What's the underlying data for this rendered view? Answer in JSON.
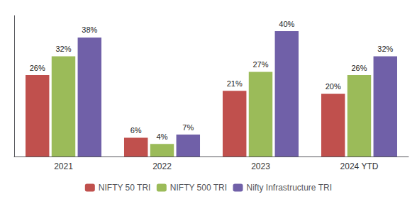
{
  "chart_data": {
    "type": "bar",
    "categories": [
      "2021",
      "2022",
      "2023",
      "2024 YTD"
    ],
    "series": [
      {
        "name": "NIFTY 50 TRI",
        "color": "#C0504D",
        "values": [
          26,
          6,
          21,
          20
        ],
        "value_labels": [
          "26%",
          "6%",
          "21%",
          "20%"
        ]
      },
      {
        "name": "NIFTY 500 TRI",
        "color": "#9BBB59",
        "values": [
          32,
          4,
          27,
          26
        ],
        "value_labels": [
          "32%",
          "4%",
          "27%",
          "26%"
        ]
      },
      {
        "name": "Nifty Infrastructure TRI",
        "color": "#7060A8",
        "values": [
          38,
          7,
          40,
          32
        ],
        "value_labels": [
          "38%",
          "7%",
          "40%",
          "32%"
        ]
      }
    ],
    "ylim": [
      0,
      45
    ],
    "grid": false,
    "legend": "bottom",
    "data_labels": true,
    "tick_labels": "x"
  }
}
